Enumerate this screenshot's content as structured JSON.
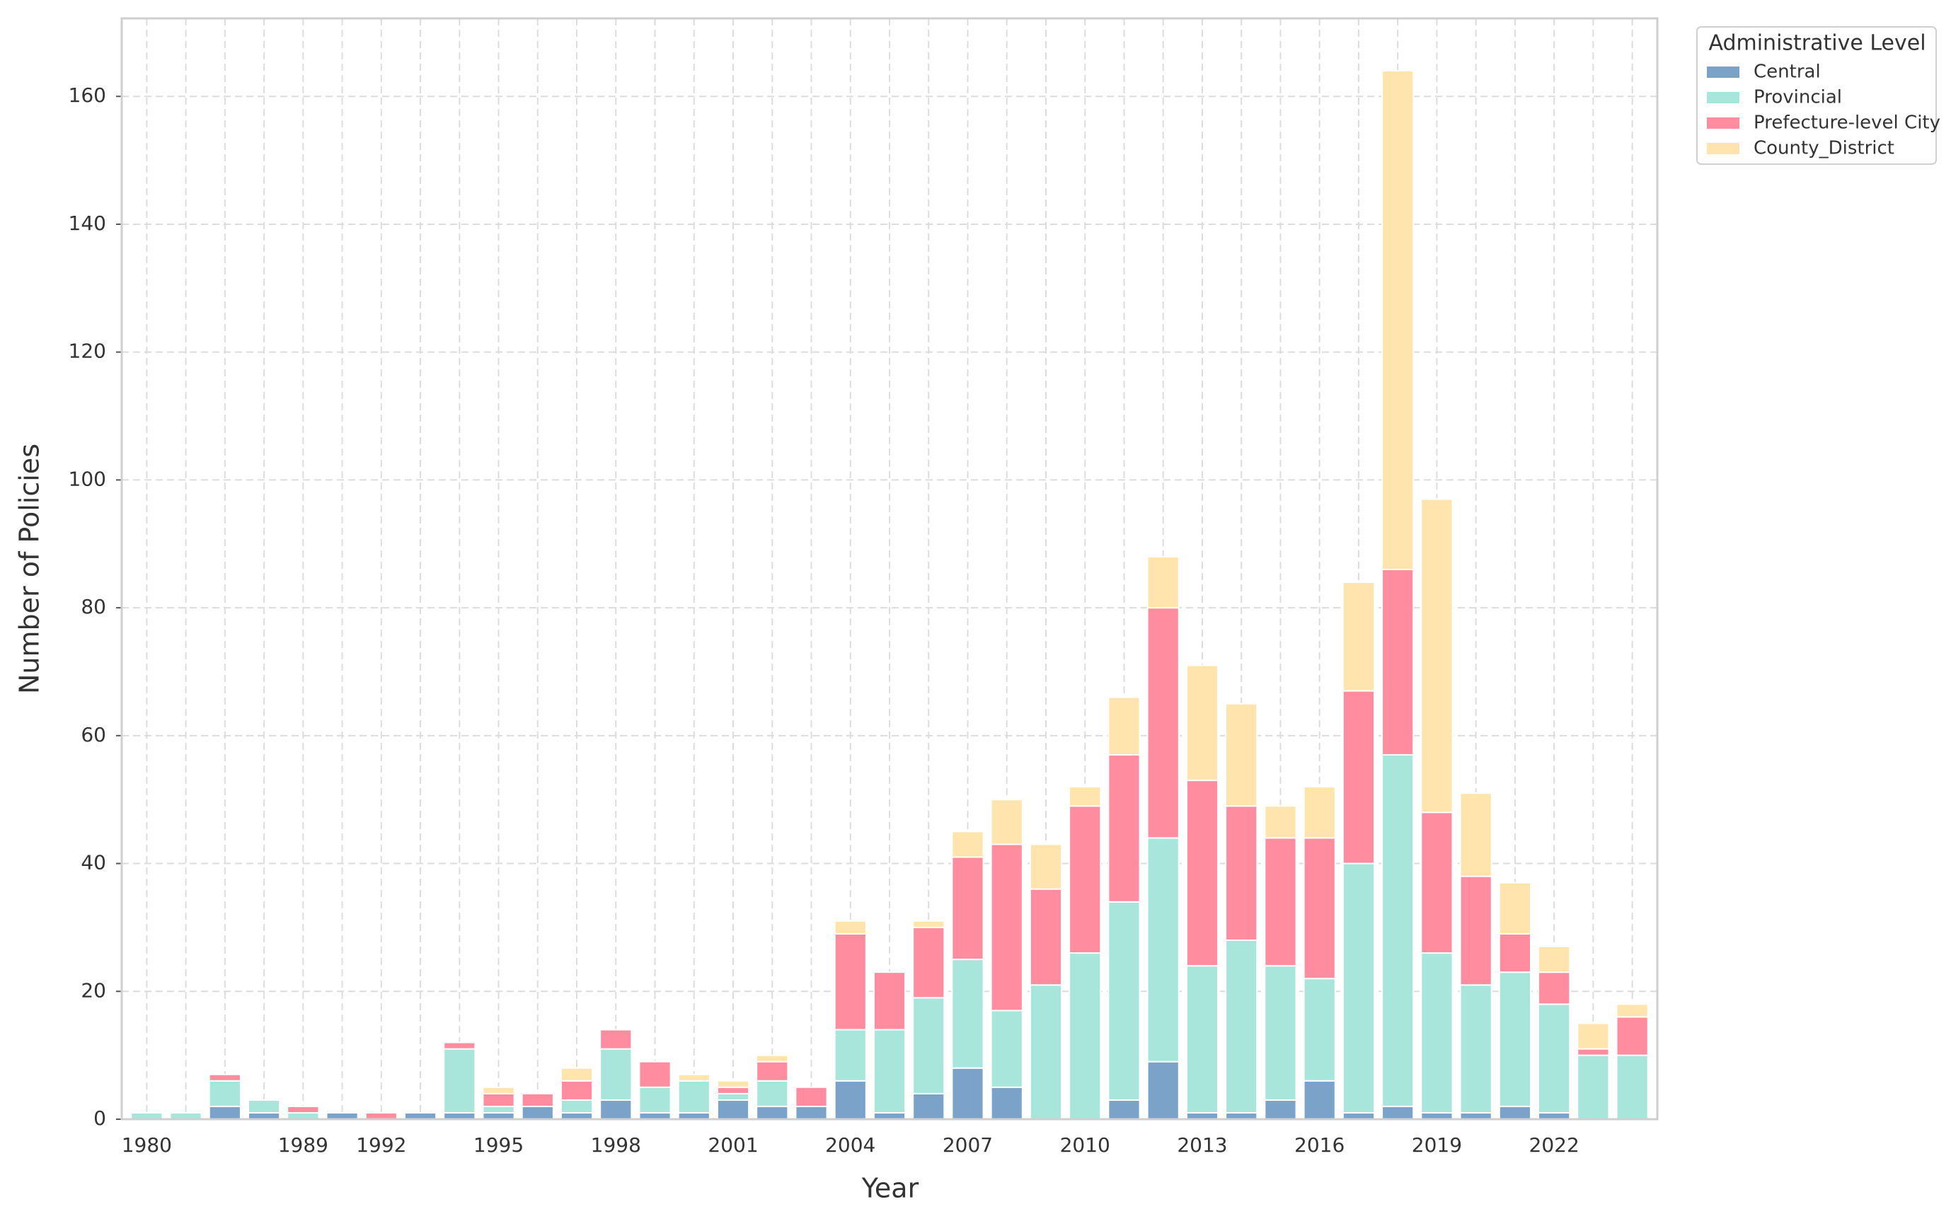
{
  "chart_data": {
    "type": "stacked-bar",
    "x_label": "Year",
    "y_label": "Number of Policies",
    "categories": [
      "1980",
      null,
      null,
      null,
      "1989",
      null,
      "1992",
      null,
      null,
      "1995",
      null,
      null,
      "1998",
      null,
      null,
      "2001",
      null,
      null,
      "2004",
      null,
      null,
      "2007",
      null,
      null,
      "2010",
      null,
      null,
      "2013",
      null,
      null,
      "2016",
      null,
      null,
      "2019",
      null,
      null,
      "2022",
      null,
      null
    ],
    "series": [
      {
        "name": "Central",
        "color": "#7ba3c9",
        "values": [
          0,
          0,
          2,
          1,
          0,
          1,
          0,
          1,
          1,
          1,
          2,
          1,
          3,
          1,
          1,
          3,
          2,
          2,
          6,
          1,
          4,
          8,
          5,
          0,
          0,
          3,
          9,
          1,
          1,
          3,
          6,
          1,
          2,
          1,
          1,
          2,
          1,
          0,
          0
        ]
      },
      {
        "name": "Provincial",
        "color": "#a8e6dc",
        "values": [
          1,
          1,
          4,
          2,
          1,
          0,
          0,
          0,
          10,
          1,
          0,
          2,
          8,
          4,
          5,
          1,
          4,
          0,
          8,
          13,
          15,
          17,
          12,
          21,
          26,
          31,
          35,
          23,
          27,
          21,
          16,
          39,
          55,
          25,
          20,
          21,
          17,
          10,
          10
        ]
      },
      {
        "name": "Prefecture-level City",
        "color": "#ff8c9f",
        "values": [
          0,
          0,
          1,
          0,
          1,
          0,
          1,
          0,
          1,
          2,
          2,
          3,
          3,
          4,
          0,
          1,
          3,
          3,
          15,
          9,
          11,
          16,
          26,
          15,
          23,
          23,
          36,
          29,
          21,
          20,
          22,
          27,
          29,
          22,
          17,
          6,
          5,
          1,
          6
        ]
      },
      {
        "name": "County_District",
        "color": "#ffe4ad",
        "values": [
          0,
          0,
          0,
          0,
          0,
          0,
          0,
          0,
          0,
          1,
          0,
          2,
          0,
          0,
          1,
          1,
          1,
          0,
          2,
          0,
          1,
          4,
          7,
          7,
          3,
          9,
          8,
          18,
          16,
          5,
          8,
          17,
          78,
          49,
          13,
          8,
          4,
          4,
          2
        ]
      }
    ],
    "ylim": [
      0,
      172.2
    ],
    "yticks": [
      0,
      20,
      40,
      60,
      80,
      100,
      120,
      140,
      160
    ],
    "grid": true,
    "legend_title": "Administrative Level",
    "legend_position": "outside-upper-right"
  }
}
